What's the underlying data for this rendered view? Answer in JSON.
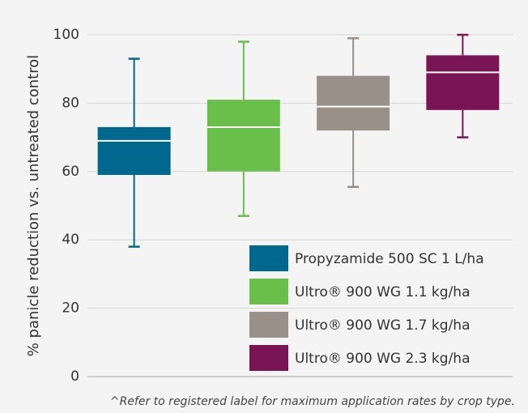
{
  "chart_data": {
    "type": "box",
    "y_label": "% panicle reduction vs. untreated control",
    "footnote": "^Refer to registered label for maximum application rates by crop type.",
    "ylim": [
      0,
      100
    ],
    "yticks": [
      0,
      20,
      40,
      60,
      80,
      100
    ],
    "grid": true,
    "legend": "lower right",
    "series": [
      {
        "name": "Propyzamide 500 SC 1 L/ha",
        "color": "#00678e",
        "whisker_low": 38,
        "q1": 59,
        "median": 69,
        "q3": 73,
        "whisker_high": 93
      },
      {
        "name": "Ultro® 900 WG 1.1 kg/ha",
        "color": "#6abf4b",
        "whisker_low": 47,
        "q1": 60,
        "median": 73,
        "q3": 81,
        "whisker_high": 98
      },
      {
        "name": "Ultro® 900 WG 1.7 kg/ha",
        "color": "#9b8f8a",
        "whisker_low": 55.5,
        "q1": 72,
        "median": 79,
        "q3": 88,
        "whisker_high": 99
      },
      {
        "name": "Ultro® 900 WG 2.3 kg/ha",
        "color": "#7a1555",
        "whisker_low": 70,
        "q1": 78,
        "median": 89,
        "q3": 94,
        "whisker_high": 100
      }
    ]
  }
}
